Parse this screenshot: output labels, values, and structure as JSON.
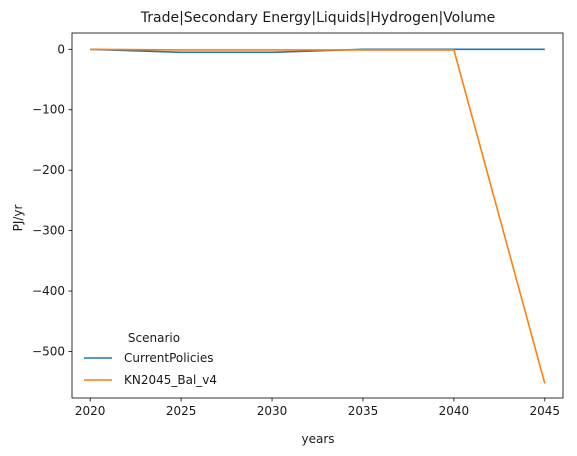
{
  "chart_data": {
    "type": "line",
    "title": "Trade|Secondary Energy|Liquids|Hydrogen|Volume",
    "xlabel": "years",
    "ylabel": "PJ/yr",
    "x": [
      2020,
      2025,
      2030,
      2035,
      2040,
      2045
    ],
    "xlim": [
      2019,
      2046
    ],
    "ylim": [
      -577,
      27
    ],
    "xticks": [
      2020,
      2025,
      2030,
      2035,
      2040,
      2045
    ],
    "yticks": [
      0,
      -100,
      -200,
      -300,
      -400,
      -500
    ],
    "ytick_labels": [
      "0",
      "−100",
      "−200",
      "−300",
      "−400",
      "−500"
    ],
    "grid": false,
    "legend": {
      "title": "Scenario",
      "placement": "lower-left"
    },
    "series": [
      {
        "name": "CurrentPolicies",
        "color": "#1f77b4",
        "values": [
          0,
          -5,
          -5,
          0,
          0,
          0
        ]
      },
      {
        "name": "KN2045_Bal_v4",
        "color": "#ff7f0e",
        "values": [
          0,
          -1,
          -1,
          -1,
          -1,
          -553
        ]
      }
    ]
  }
}
